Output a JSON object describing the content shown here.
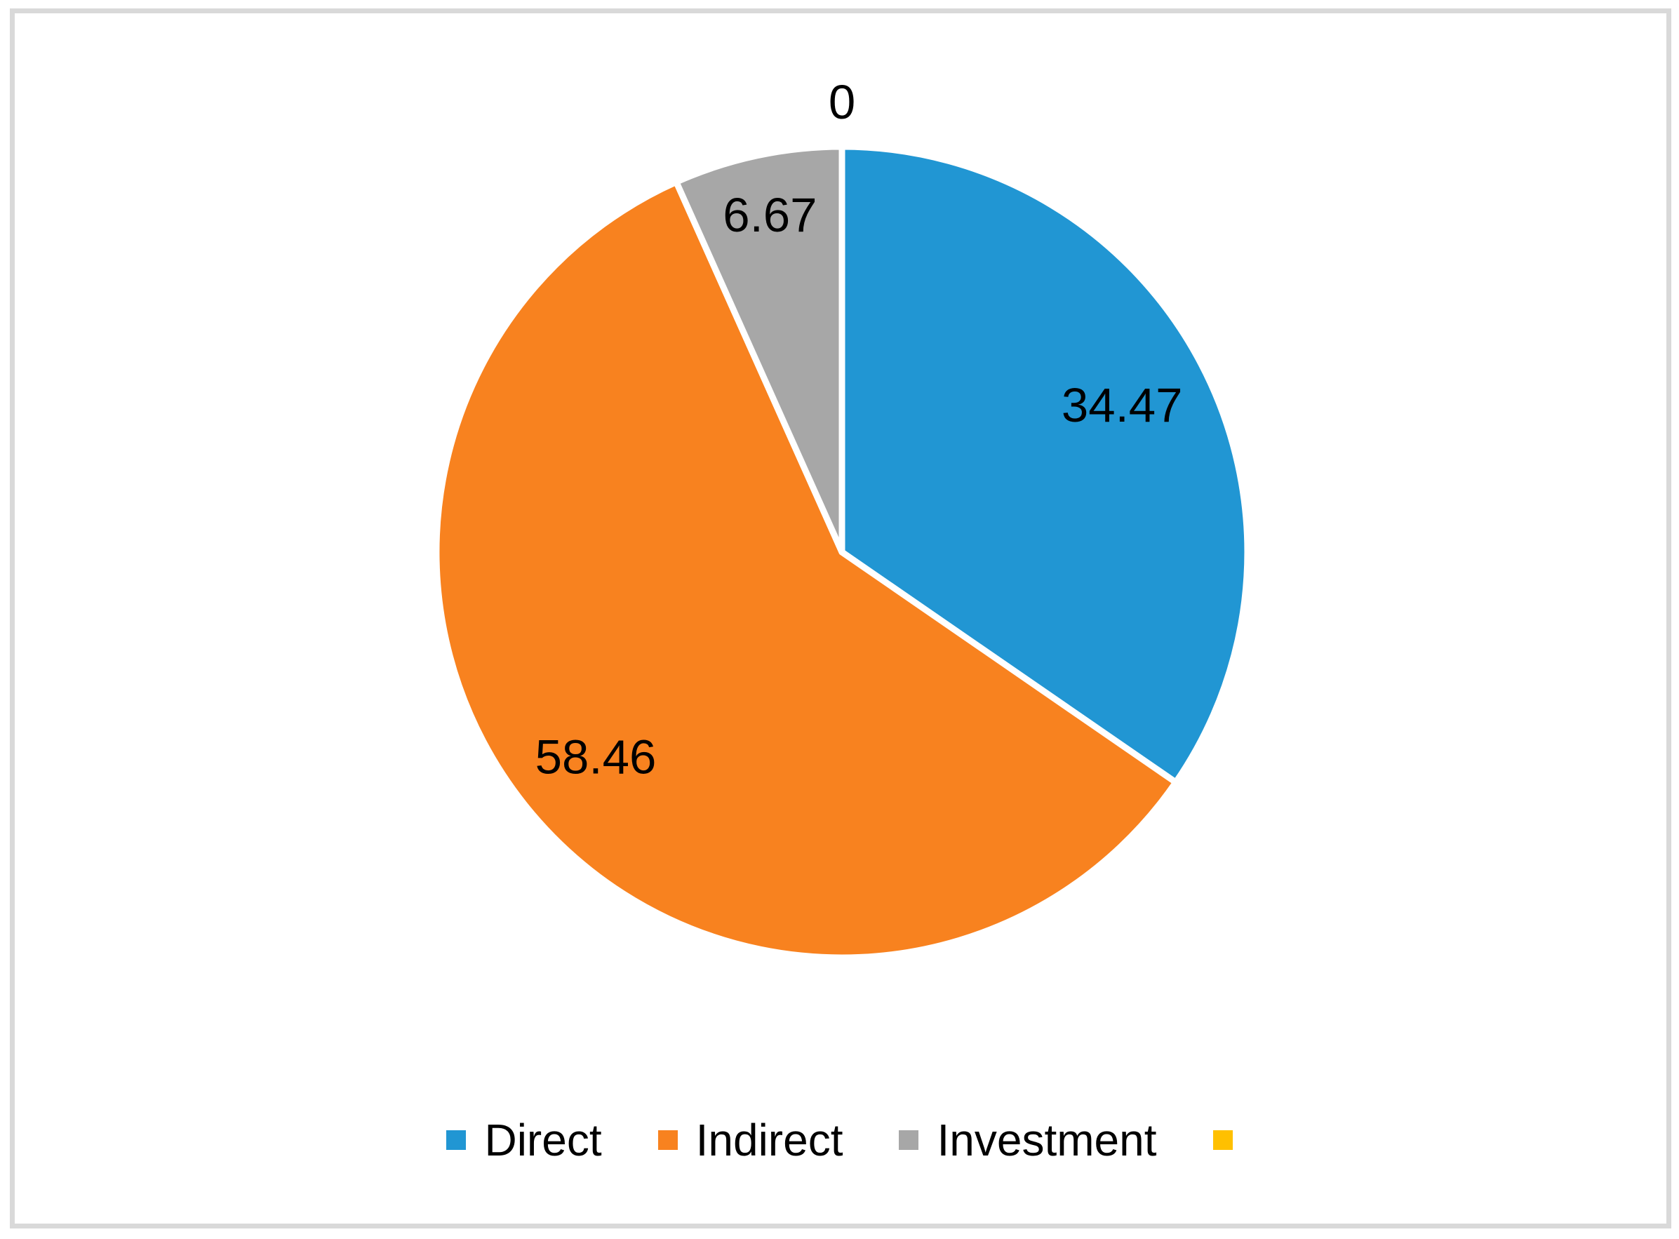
{
  "chart_data": {
    "type": "pie",
    "title": "",
    "slices": [
      {
        "label": "Direct",
        "value": 34.47,
        "label_text": "34.47",
        "color": "#2196d3",
        "label_r_frac": 0.78
      },
      {
        "label": "Indirect",
        "value": 58.46,
        "label_text": "58.46",
        "color": "#f8821f",
        "label_r_frac": 0.79
      },
      {
        "label": "Investment",
        "value": 6.67,
        "label_text": "6.67",
        "color": "#a7a7a7",
        "label_r_frac": 0.85
      },
      {
        "label": "",
        "value": 0,
        "label_text": "0",
        "color": "#ffc000",
        "label_r_frac": 1.11
      }
    ],
    "start_angle_deg": 0,
    "direction": "clockwise",
    "data_labels": [
      "34.47",
      "58.46",
      "6.67",
      "0"
    ],
    "legend_position": "bottom",
    "legend_entries": [
      "Direct",
      "Indirect",
      "Investment",
      ""
    ],
    "separator_color": "#ffffff",
    "frame_border_color": "#d9d9d9",
    "label_color": "#000000"
  }
}
